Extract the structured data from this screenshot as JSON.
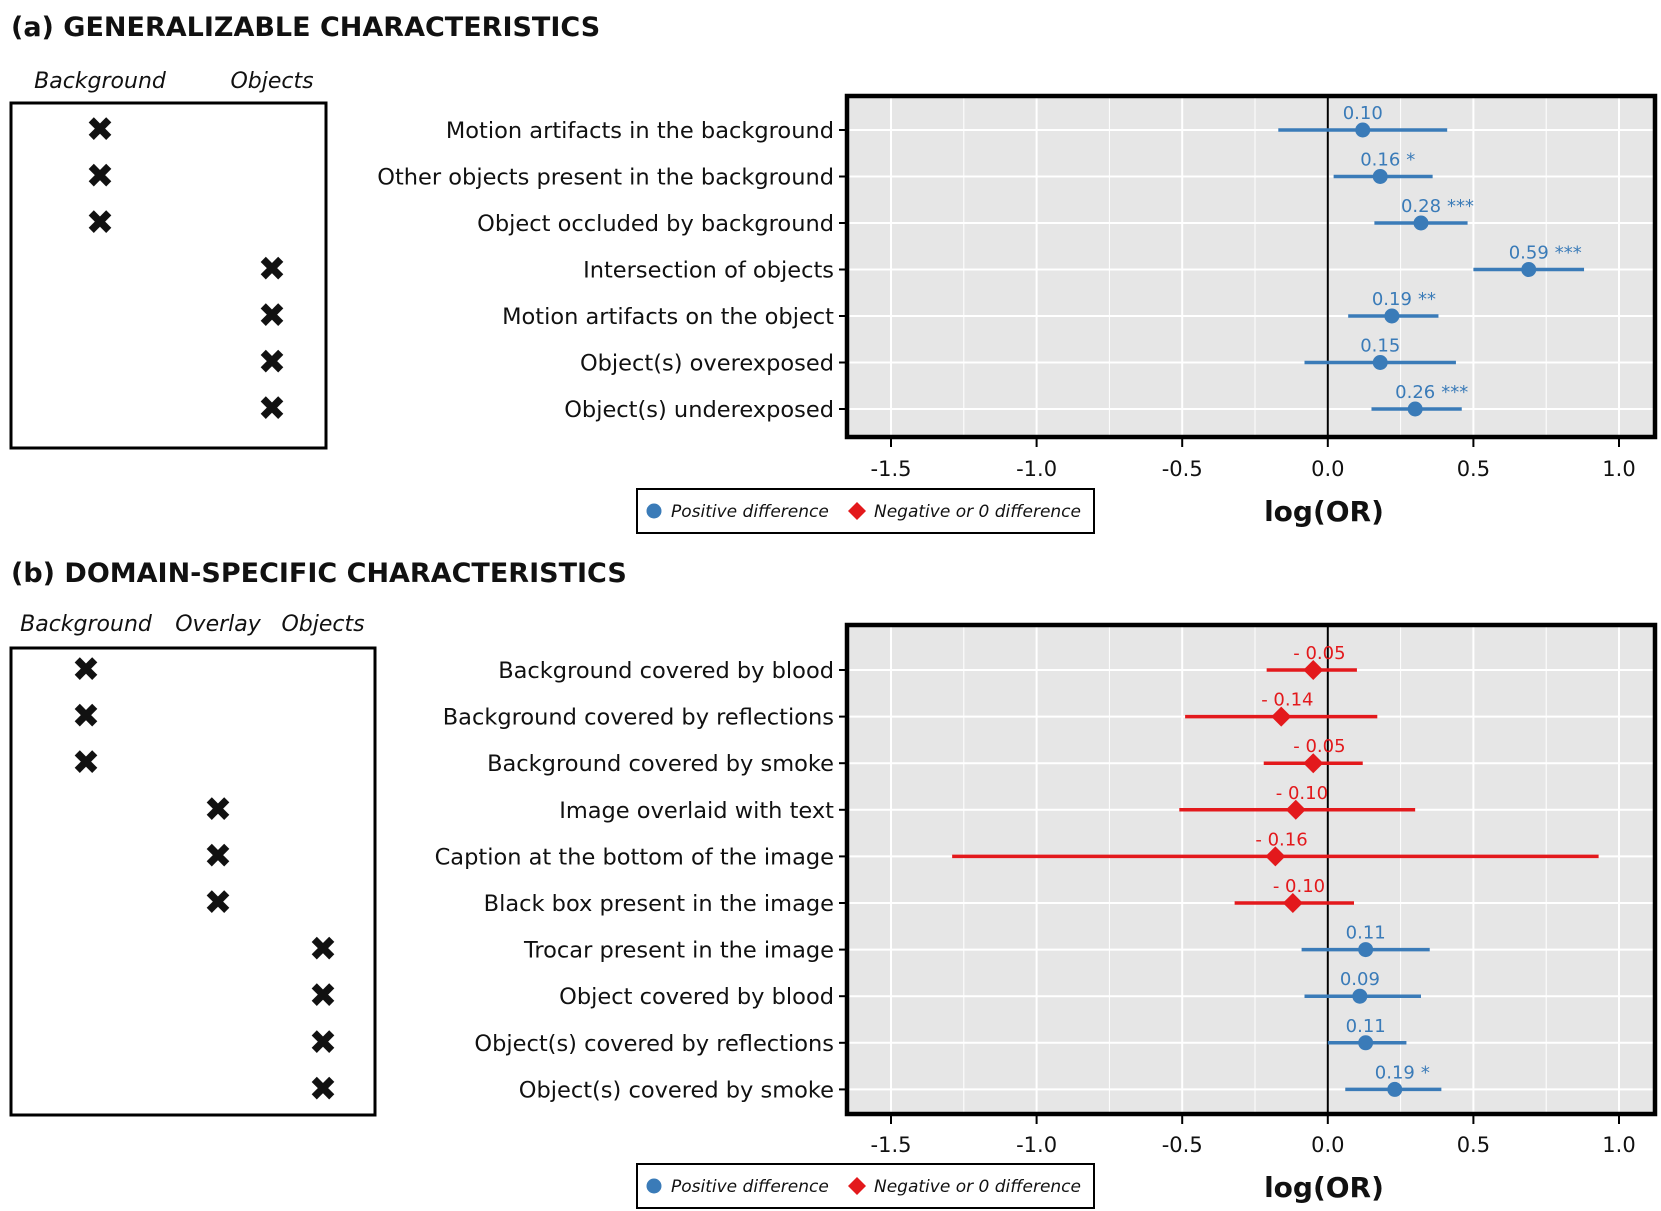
{
  "colors": {
    "positive": "#3a7bb8",
    "negative": "#e3191c",
    "panel": "#e6e6e6",
    "grid": "#ffffff",
    "border": "#000000"
  },
  "panels": [
    {
      "id": "a",
      "title": "(a) GENERALIZABLE CHARACTERISTICS",
      "columns": [
        "Background",
        "Objects"
      ],
      "rows": [
        {
          "label": "Motion artifacts in the background",
          "column": "Background"
        },
        {
          "label": "Other objects present in the background",
          "column": "Background"
        },
        {
          "label": "Object occluded by background",
          "column": "Background"
        },
        {
          "label": "Intersection of objects",
          "column": "Objects"
        },
        {
          "label": "Motion artifacts on the object",
          "column": "Objects"
        },
        {
          "label": "Object(s) overexposed",
          "column": "Objects"
        },
        {
          "label": "Object(s) underexposed",
          "column": "Objects"
        }
      ],
      "legend": {
        "positive": "Positive difference",
        "negative": "Negative or 0 difference"
      }
    },
    {
      "id": "b",
      "title": "(b) DOMAIN-SPECIFIC CHARACTERISTICS",
      "columns": [
        "Background",
        "Overlay",
        "Objects"
      ],
      "rows": [
        {
          "label": "Background covered by blood",
          "column": "Background"
        },
        {
          "label": "Background covered by reflections",
          "column": "Background"
        },
        {
          "label": "Background covered by smoke",
          "column": "Background"
        },
        {
          "label": "Image overlaid with text",
          "column": "Overlay"
        },
        {
          "label": "Caption at the bottom of the image",
          "column": "Overlay"
        },
        {
          "label": "Black box present in the image",
          "column": "Overlay"
        },
        {
          "label": "Trocar present in the image",
          "column": "Objects"
        },
        {
          "label": "Object covered by blood",
          "column": "Objects"
        },
        {
          "label": "Object(s) covered by reflections",
          "column": "Objects"
        },
        {
          "label": "Object(s) covered by smoke",
          "column": "Objects"
        }
      ],
      "legend": {
        "positive": "Positive difference",
        "negative": "Negative or 0 difference"
      }
    }
  ],
  "chart_data": [
    {
      "type": "forest",
      "panel": "a",
      "xlabel": "log(OR)",
      "xlim": [
        -1.6,
        1.15
      ],
      "xticks": [
        -1.5,
        -1.0,
        -0.5,
        0.0,
        0.5,
        1.0
      ],
      "xtick_labels": [
        "-1.5",
        "-1.0",
        "-0.5",
        "0.0",
        "0.5",
        "1.0"
      ],
      "reference_line": 0,
      "points": [
        {
          "label": "Motion artifacts in the background",
          "estimate": 0.12,
          "lower": -0.17,
          "upper": 0.41,
          "value_label": "0.10",
          "sig": "",
          "sign": "positive"
        },
        {
          "label": "Other objects present in the background",
          "estimate": 0.18,
          "lower": 0.02,
          "upper": 0.36,
          "value_label": "0.16",
          "sig": "*",
          "sign": "positive"
        },
        {
          "label": "Object occluded by background",
          "estimate": 0.32,
          "lower": 0.16,
          "upper": 0.48,
          "value_label": "0.28",
          "sig": "***",
          "sign": "positive"
        },
        {
          "label": "Intersection of objects",
          "estimate": 0.69,
          "lower": 0.5,
          "upper": 0.88,
          "value_label": "0.59",
          "sig": "***",
          "sign": "positive"
        },
        {
          "label": "Motion artifacts on the object",
          "estimate": 0.22,
          "lower": 0.07,
          "upper": 0.38,
          "value_label": "0.19",
          "sig": "**",
          "sign": "positive"
        },
        {
          "label": "Object(s) overexposed",
          "estimate": 0.18,
          "lower": -0.08,
          "upper": 0.44,
          "value_label": "0.15",
          "sig": "",
          "sign": "positive"
        },
        {
          "label": "Object(s) underexposed",
          "estimate": 0.3,
          "lower": 0.15,
          "upper": 0.46,
          "value_label": "0.26",
          "sig": "***",
          "sign": "positive"
        }
      ]
    },
    {
      "type": "forest",
      "panel": "b",
      "xlabel": "log(OR)",
      "xlim": [
        -1.6,
        1.15
      ],
      "xticks": [
        -1.5,
        -1.0,
        -0.5,
        0.0,
        0.5,
        1.0
      ],
      "xtick_labels": [
        "-1.5",
        "-1.0",
        "-0.5",
        "0.0",
        "0.5",
        "1.0"
      ],
      "reference_line": 0,
      "points": [
        {
          "label": "Background covered by blood",
          "estimate": -0.05,
          "lower": -0.21,
          "upper": 0.1,
          "value_label": "- 0.05",
          "sig": "",
          "sign": "negative"
        },
        {
          "label": "Background covered by reflections",
          "estimate": -0.16,
          "lower": -0.49,
          "upper": 0.17,
          "value_label": "- 0.14",
          "sig": "",
          "sign": "negative"
        },
        {
          "label": "Background covered by smoke",
          "estimate": -0.05,
          "lower": -0.22,
          "upper": 0.12,
          "value_label": "- 0.05",
          "sig": "",
          "sign": "negative"
        },
        {
          "label": "Image overlaid with text",
          "estimate": -0.11,
          "lower": -0.51,
          "upper": 0.3,
          "value_label": "- 0.10",
          "sig": "",
          "sign": "negative"
        },
        {
          "label": "Caption at the bottom of the image",
          "estimate": -0.18,
          "lower": -1.29,
          "upper": 0.93,
          "value_label": "- 0.16",
          "sig": "",
          "sign": "negative"
        },
        {
          "label": "Black box present in the image",
          "estimate": -0.12,
          "lower": -0.32,
          "upper": 0.09,
          "value_label": "- 0.10",
          "sig": "",
          "sign": "negative"
        },
        {
          "label": "Trocar present in the image",
          "estimate": 0.13,
          "lower": -0.09,
          "upper": 0.35,
          "value_label": "0.11",
          "sig": "",
          "sign": "positive"
        },
        {
          "label": "Object covered by blood",
          "estimate": 0.11,
          "lower": -0.08,
          "upper": 0.32,
          "value_label": "0.09",
          "sig": "",
          "sign": "positive"
        },
        {
          "label": "Object(s) covered by reflections",
          "estimate": 0.13,
          "lower": 0.0,
          "upper": 0.27,
          "value_label": "0.11",
          "sig": "",
          "sign": "positive"
        },
        {
          "label": "Object(s) covered by smoke",
          "estimate": 0.23,
          "lower": 0.06,
          "upper": 0.39,
          "value_label": "0.19",
          "sig": "*",
          "sign": "positive"
        }
      ]
    }
  ]
}
